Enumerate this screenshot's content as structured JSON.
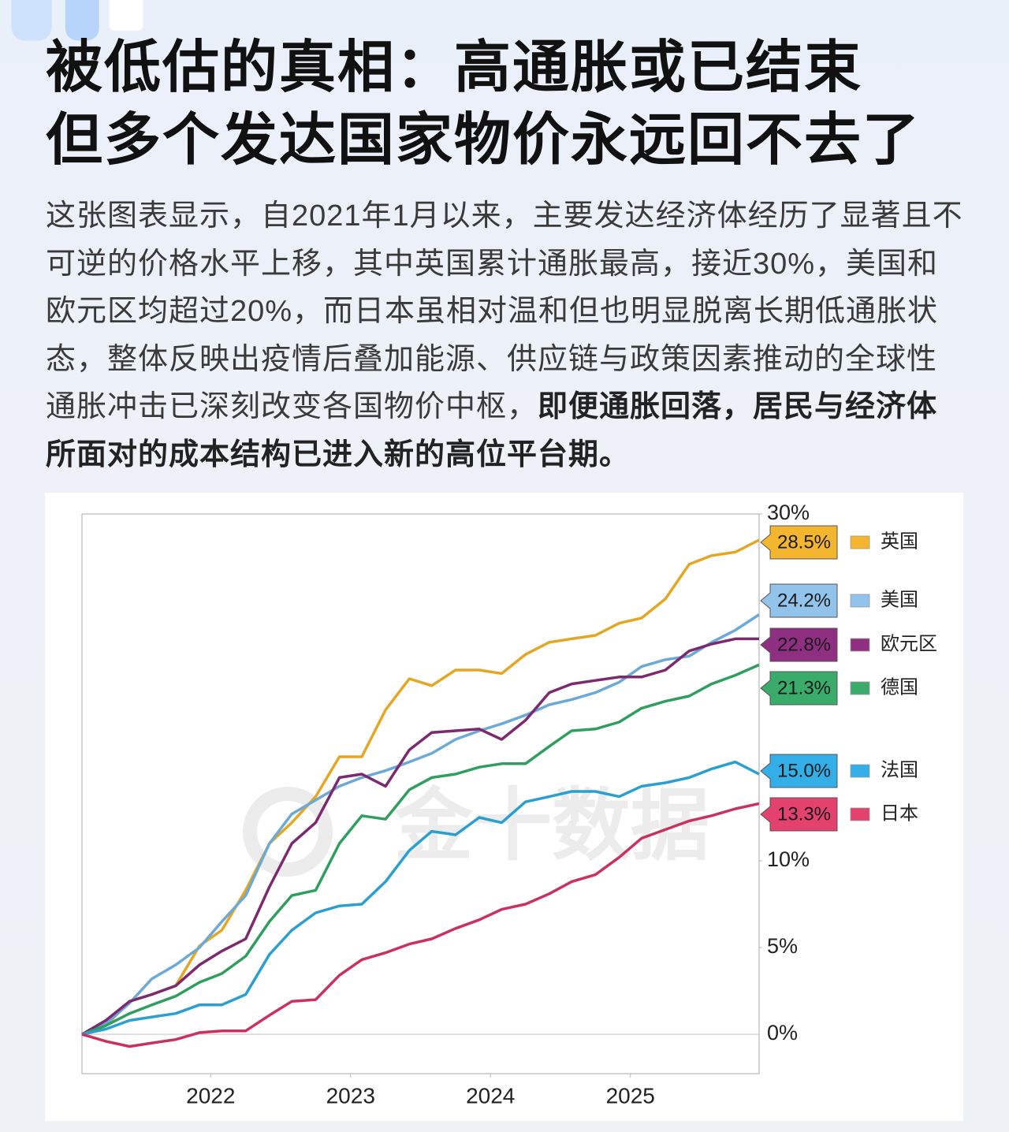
{
  "header": {
    "title_line1": "被低估的真相：高通胀或已结束",
    "title_line2": "但多个发达国家物价永远回不去了"
  },
  "paragraph": {
    "text": "这张图表显示，自2021年1月以来，主要发达经济体经历了显著且不可逆的价格水平上移，其中英国累计通胀最高，接近30%，美国和欧元区均超过20%，而日本虽相对温和但也明显脱离长期低通胀状态，整体反映出疫情后叠加能源、供应链与政策因素推动的全球性通胀冲击已深刻改变各国物价中枢，",
    "emphasis": "即便通胀回落，居民与经济体所面对的成本结构已进入新的高位平台期。"
  },
  "chart_data": {
    "type": "line",
    "watermark": "金十数据",
    "x": [
      2021.08,
      2021.25,
      2021.42,
      2021.58,
      2021.75,
      2021.92,
      2022.08,
      2022.25,
      2022.42,
      2022.58,
      2022.75,
      2022.92,
      2023.08,
      2023.25,
      2023.42,
      2023.58,
      2023.75,
      2023.92,
      2024.08,
      2024.25,
      2024.42,
      2024.58,
      2024.75,
      2024.92,
      2025.08,
      2025.25,
      2025.42,
      2025.58,
      2025.75,
      2025.92
    ],
    "xlim": [
      2021.08,
      2025.92
    ],
    "xticks": [
      2022,
      2023,
      2024,
      2025
    ],
    "ylim": [
      -2.27,
      30
    ],
    "yticks": [
      {
        "value": 0,
        "label": "0%"
      },
      {
        "value": 5,
        "label": "5%"
      },
      {
        "value": 10,
        "label": "10%"
      },
      {
        "value": 30,
        "label": "30%"
      }
    ],
    "series": [
      {
        "name": "英国",
        "color": "#e3a724",
        "label_color": "#f3b62e",
        "values": [
          0,
          0.5,
          1.9,
          2.3,
          2.8,
          5.1,
          6.0,
          8.3,
          11.0,
          12.2,
          13.7,
          16.0,
          16.0,
          18.7,
          20.5,
          20.1,
          21.0,
          21.0,
          20.8,
          21.9,
          22.6,
          22.8,
          23.0,
          23.7,
          24.0,
          25.1,
          27.1,
          27.6,
          27.8,
          28.5
        ],
        "value_labels": [
          null,
          null,
          null,
          null,
          null,
          null,
          null,
          null,
          null,
          null,
          null,
          null,
          null,
          null,
          null,
          null,
          null,
          null,
          null,
          null,
          null,
          null,
          null,
          null,
          null,
          null,
          null,
          null,
          null,
          "28.5%"
        ]
      },
      {
        "name": "美国",
        "color": "#6da9d6",
        "label_color": "#92c3ea",
        "values": [
          0,
          0.6,
          1.8,
          3.2,
          4.0,
          5.0,
          6.5,
          8.0,
          11.0,
          12.7,
          13.5,
          14.3,
          14.8,
          15.2,
          15.7,
          16.2,
          17.0,
          17.5,
          17.9,
          18.4,
          19.0,
          19.3,
          19.7,
          20.3,
          21.2,
          21.6,
          21.8,
          22.6,
          23.3,
          24.2
        ],
        "value_labels": [
          null,
          null,
          null,
          null,
          null,
          null,
          null,
          null,
          null,
          null,
          null,
          null,
          null,
          null,
          null,
          null,
          null,
          null,
          null,
          null,
          null,
          null,
          null,
          null,
          null,
          null,
          null,
          null,
          null,
          "24.2%"
        ]
      },
      {
        "name": "欧元区",
        "color": "#7b2a70",
        "label_color": "#8e2f82",
        "values": [
          0,
          0.8,
          1.9,
          2.3,
          2.8,
          4.0,
          4.8,
          5.5,
          8.5,
          11.0,
          12.2,
          14.8,
          15.0,
          14.3,
          16.4,
          17.4,
          17.5,
          17.6,
          17.0,
          18.1,
          19.7,
          20.2,
          20.4,
          20.6,
          20.6,
          21.0,
          22.1,
          22.5,
          22.8,
          22.8
        ],
        "value_labels": [
          null,
          null,
          null,
          null,
          null,
          null,
          null,
          null,
          null,
          null,
          null,
          null,
          null,
          null,
          null,
          null,
          null,
          null,
          null,
          null,
          null,
          null,
          null,
          null,
          null,
          null,
          null,
          null,
          null,
          "22.8%"
        ]
      },
      {
        "name": "德国",
        "color": "#2f9e5f",
        "label_color": "#3bab6b",
        "values": [
          0,
          0.5,
          1.2,
          1.7,
          2.2,
          3.0,
          3.5,
          4.5,
          6.5,
          8.0,
          8.3,
          11.0,
          12.6,
          12.4,
          14.1,
          14.8,
          15.0,
          15.4,
          15.6,
          15.6,
          16.6,
          17.5,
          17.6,
          18.0,
          18.8,
          19.2,
          19.5,
          20.2,
          20.7,
          21.3
        ],
        "value_labels": [
          null,
          null,
          null,
          null,
          null,
          null,
          null,
          null,
          null,
          null,
          null,
          null,
          null,
          null,
          null,
          null,
          null,
          null,
          null,
          null,
          null,
          null,
          null,
          null,
          null,
          null,
          null,
          null,
          null,
          "21.3%"
        ]
      },
      {
        "name": "法国",
        "color": "#2a9fd0",
        "label_color": "#33aee6",
        "values": [
          0,
          0.3,
          0.8,
          1.0,
          1.2,
          1.7,
          1.7,
          2.3,
          4.6,
          6.0,
          7.0,
          7.4,
          7.5,
          8.8,
          10.6,
          11.7,
          11.5,
          12.5,
          12.2,
          13.4,
          13.7,
          14.0,
          14.0,
          13.7,
          14.3,
          14.5,
          14.8,
          15.3,
          15.7,
          15.0
        ],
        "value_labels": [
          null,
          null,
          null,
          null,
          null,
          null,
          null,
          null,
          null,
          null,
          null,
          null,
          null,
          null,
          null,
          null,
          null,
          null,
          null,
          null,
          null,
          null,
          null,
          null,
          null,
          null,
          null,
          null,
          null,
          "15.0%"
        ]
      },
      {
        "name": "日本",
        "color": "#c9315f",
        "label_color": "#e2426d",
        "values": [
          0,
          -0.4,
          -0.7,
          -0.5,
          -0.3,
          0.1,
          0.2,
          0.2,
          1.1,
          1.9,
          2.0,
          3.4,
          4.3,
          4.7,
          5.2,
          5.5,
          6.1,
          6.6,
          7.2,
          7.5,
          8.1,
          8.8,
          9.2,
          10.2,
          11.3,
          11.8,
          12.3,
          12.6,
          13.0,
          13.3
        ],
        "value_labels": [
          null,
          null,
          null,
          null,
          null,
          null,
          null,
          null,
          null,
          null,
          null,
          null,
          null,
          null,
          null,
          null,
          null,
          null,
          null,
          null,
          null,
          null,
          null,
          null,
          null,
          null,
          null,
          null,
          null,
          "13.3%"
        ]
      }
    ]
  }
}
